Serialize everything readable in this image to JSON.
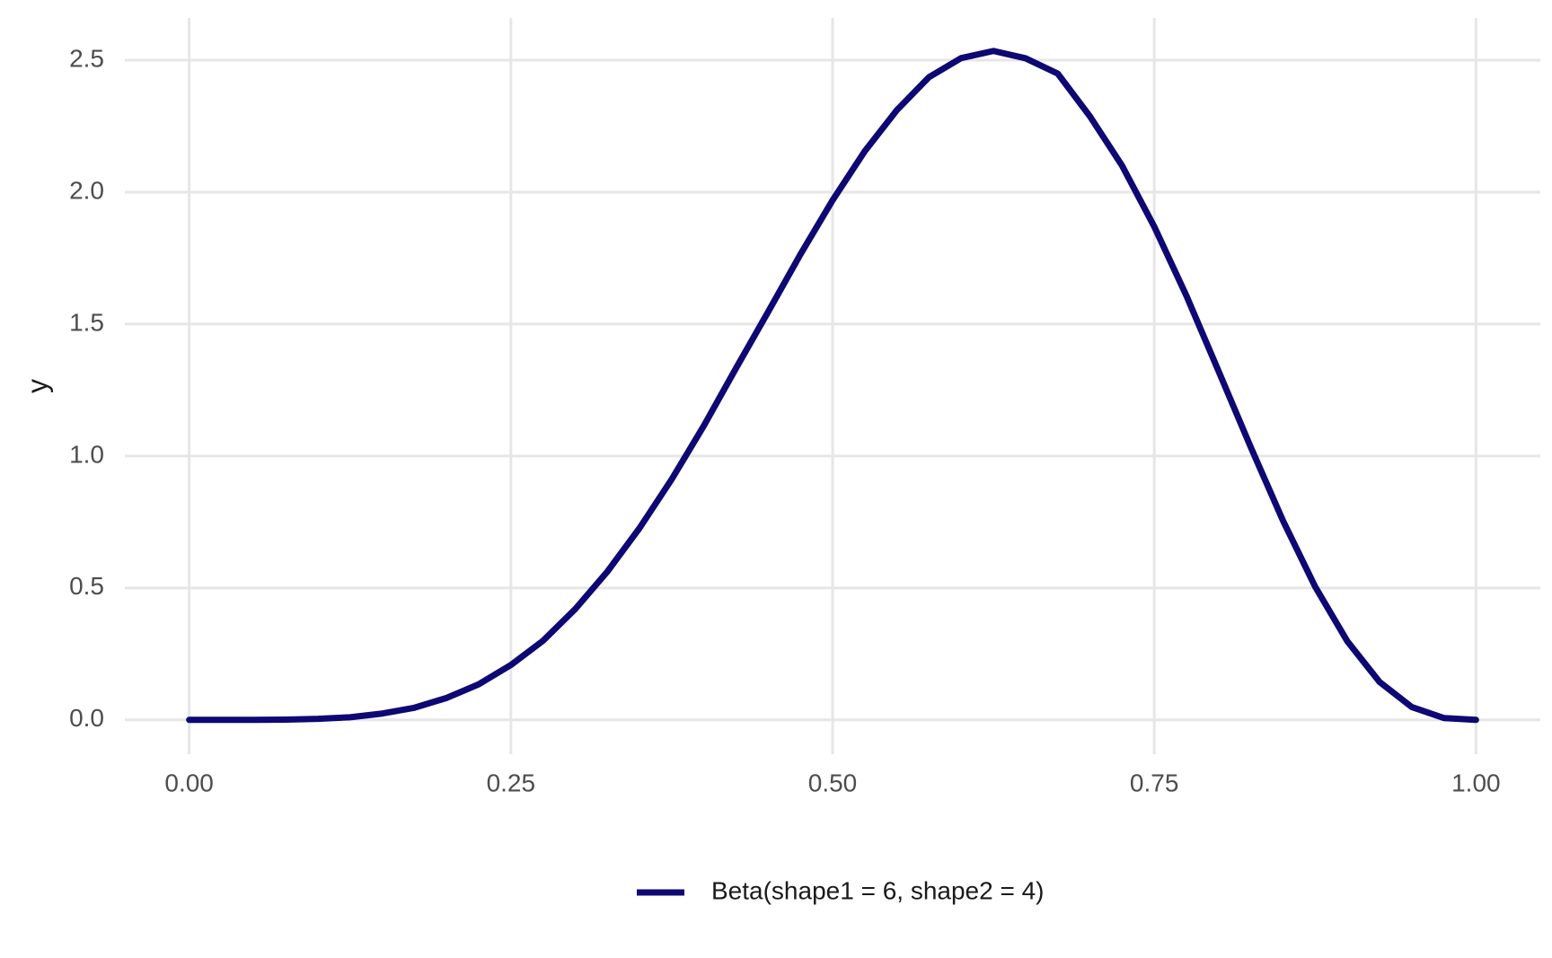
{
  "chart_data": {
    "type": "line",
    "y_label": "y",
    "x": [
      0,
      0.025,
      0.05,
      0.075,
      0.1,
      0.125,
      0.15,
      0.175,
      0.2,
      0.225,
      0.25,
      0.275,
      0.3,
      0.325,
      0.35,
      0.375,
      0.4,
      0.425,
      0.45,
      0.475,
      0.5,
      0.525,
      0.55,
      0.575,
      0.6,
      0.625,
      0.65,
      0.675,
      0.7,
      0.725,
      0.75,
      0.775,
      0.8,
      0.825,
      0.85,
      0.875,
      0.9,
      0.925,
      0.95,
      0.975,
      1
    ],
    "series": [
      {
        "name": "Beta(shape1 = 6, shape2 = 4)",
        "color": "#0d0873",
        "values": [
          0,
          0,
          0,
          0.001,
          0.004,
          0.01,
          0.024,
          0.046,
          0.083,
          0.135,
          0.208,
          0.3,
          0.42,
          0.562,
          0.727,
          0.912,
          1.115,
          1.333,
          1.547,
          1.764,
          1.969,
          2.155,
          2.311,
          2.436,
          2.508,
          2.535,
          2.507,
          2.449,
          2.287,
          2.1,
          1.869,
          1.607,
          1.321,
          1.033,
          0.755,
          0.505,
          0.298,
          0.144,
          0.049,
          0.007,
          0
        ]
      }
    ],
    "xlim": [
      -0.05,
      1.05
    ],
    "ylim": [
      -0.13,
      2.66
    ],
    "xticks": [
      {
        "value": 0,
        "label": "0.00"
      },
      0.25,
      {
        "value": 0.5,
        "label": "0.50"
      },
      0.75,
      {
        "value": 1,
        "label": "1.00"
      }
    ],
    "yticks": [
      {
        "value": 0,
        "label": "0.0"
      },
      0.5,
      {
        "value": 1,
        "label": "1.0"
      },
      1.5,
      {
        "value": 2,
        "label": "2.0"
      },
      2.5
    ],
    "grid": true,
    "legend": "bottom"
  }
}
